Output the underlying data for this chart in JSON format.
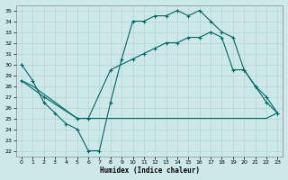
{
  "xlabel": "Humidex (Indice chaleur)",
  "xlim": [
    -0.5,
    23.5
  ],
  "ylim": [
    21.5,
    35.5
  ],
  "yticks": [
    22,
    23,
    24,
    25,
    26,
    27,
    28,
    29,
    30,
    31,
    32,
    33,
    34,
    35
  ],
  "xticks": [
    0,
    1,
    2,
    3,
    4,
    5,
    6,
    7,
    8,
    9,
    10,
    11,
    12,
    13,
    14,
    15,
    16,
    17,
    18,
    19,
    20,
    21,
    22,
    23
  ],
  "bg_color": "#cde8e8",
  "line_color": "#006666",
  "line1_x": [
    0,
    1,
    2,
    3,
    4,
    5,
    6,
    7,
    8,
    9,
    10,
    11,
    12,
    13,
    14,
    15,
    16,
    17,
    18,
    19,
    20,
    21,
    22,
    23
  ],
  "line1_y": [
    30,
    28.5,
    26.5,
    25.5,
    24.5,
    24.0,
    22.0,
    22.0,
    26.5,
    30.5,
    34.0,
    34.0,
    34.5,
    34.5,
    35.0,
    34.5,
    35.0,
    34.0,
    33.0,
    32.5,
    29.5,
    28.0,
    26.5,
    25.5
  ],
  "line2_x": [
    0,
    2,
    5,
    6,
    8,
    10,
    11,
    12,
    13,
    14,
    15,
    16,
    17,
    18,
    19,
    20,
    21,
    22,
    23
  ],
  "line2_y": [
    28.5,
    27.0,
    25.0,
    25.0,
    29.5,
    30.5,
    31.0,
    31.5,
    32.0,
    32.0,
    32.5,
    32.5,
    33.0,
    32.5,
    29.5,
    29.5,
    28.0,
    27.0,
    25.5
  ],
  "line3_x": [
    0,
    1,
    5,
    6,
    7,
    8,
    9,
    10,
    11,
    12,
    13,
    14,
    15,
    16,
    17,
    18,
    19,
    20,
    21,
    22,
    23
  ],
  "line3_y": [
    28.5,
    28.0,
    25.0,
    25.0,
    25.0,
    25.0,
    25.0,
    25.0,
    25.0,
    25.0,
    25.0,
    25.0,
    25.0,
    25.0,
    25.0,
    25.0,
    25.0,
    25.0,
    25.0,
    25.0,
    25.5
  ]
}
